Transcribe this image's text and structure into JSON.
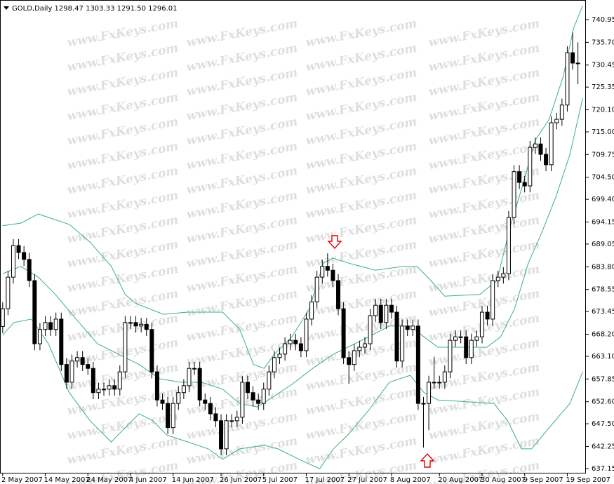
{
  "chart_data": {
    "type": "candlestick",
    "title": "GOLD,Daily  1298.47 1303.33 1291.50 1296.01",
    "watermark": "www.FxKeys.com",
    "up_color": "#ffffff",
    "down_color": "#000000",
    "xlim": [
      -0.5,
      109.5
    ],
    "ylim": [
      636.0,
      744.68
    ],
    "xticks": [
      {
        "value": 0,
        "label": "2 May 2007"
      },
      {
        "value": 8,
        "label": "14 May 2007"
      },
      {
        "value": 16,
        "label": "24 May 2007"
      },
      {
        "value": 24,
        "label": "4 Jun 2007"
      },
      {
        "value": 32,
        "label": "14 Jun 2007"
      },
      {
        "value": 41,
        "label": "26 Jun 2007"
      },
      {
        "value": 49,
        "label": "5 Jul 2007"
      },
      {
        "value": 57,
        "label": "17 Jul 2007"
      },
      {
        "value": 65,
        "label": "27 Jul 2007"
      },
      {
        "value": 73,
        "label": "8 Aug 2007"
      },
      {
        "value": 82,
        "label": "20 Aug 2007"
      },
      {
        "value": 90,
        "label": "30 Aug 2007"
      },
      {
        "value": 98,
        "label": "9 Sep 2007"
      },
      {
        "value": 106,
        "label": "19 Sep 2007"
      }
    ],
    "yticks": [
      740.95,
      {
        "value": 735.7,
        "label": "735.70"
      },
      730.45,
      725.35,
      {
        "value": 720.1,
        "label": "720.10"
      },
      {
        "value": 715,
        "label": "715.00"
      },
      709.75,
      {
        "value": 704.5,
        "label": "704.50"
      },
      {
        "value": 699.4,
        "label": "699.40"
      },
      694.15,
      689.05,
      {
        "value": 683.8,
        "label": "683.80"
      },
      678.55,
      673.45,
      {
        "value": 668.2,
        "label": "668.20"
      },
      {
        "value": 663.1,
        "label": "663.10"
      },
      657.85,
      {
        "value": 652.6,
        "label": "652.60"
      },
      {
        "value": 647.5,
        "label": "647.50"
      },
      642.25,
      637.15
    ],
    "open": [
      670.0,
      674.1,
      681.4,
      688.7,
      687.1,
      685.5,
      680.6,
      666.0,
      669.3,
      670.9,
      669.3,
      671.7,
      661.2,
      657.1,
      662.0,
      662.8,
      661.2,
      660.3,
      654.7,
      655.5,
      655.5,
      656.3,
      655.5,
      659.5,
      670.9,
      670.9,
      670.1,
      670.5,
      669.3,
      659.5,
      653.0,
      652.2,
      646.6,
      652.2,
      654.7,
      656.3,
      660.3,
      660.3,
      653.0,
      652.2,
      649.8,
      648.2,
      641.7,
      648.2,
      648.2,
      649.0,
      657.1,
      654.7,
      653.0,
      652.2,
      655.5,
      659.5,
      662.8,
      663.6,
      666.0,
      666.8,
      666.0,
      664.4,
      671.7,
      675.7,
      681.4,
      683.9,
      683.0,
      680.6,
      674.1,
      662.8,
      661.2,
      664.4,
      665.2,
      666.0,
      672.5,
      674.9,
      670.9,
      674.9,
      673.3,
      662.0,
      670.1,
      669.3,
      670.1,
      652.2,
      652.2,
      657.1,
      657.1,
      657.1,
      659.5,
      666.8,
      667.6,
      667.6,
      662.8,
      666.8,
      667.6,
      673.3,
      671.7,
      680.6,
      681.4,
      682.2,
      695.2,
      705.8,
      703.3,
      702.5,
      711.4,
      712.2,
      709.8,
      707.4,
      717.1,
      717.9,
      721.2,
      733.3,
      730.9
    ],
    "high": [
      675.6,
      682.9,
      690.2,
      690.2,
      688.6,
      687.0,
      682.1,
      670.8,
      672.4,
      672.4,
      673.2,
      673.2,
      662.7,
      663.5,
      664.3,
      664.3,
      662.7,
      661.8,
      657.0,
      657.0,
      657.8,
      657.8,
      661.0,
      672.4,
      672.4,
      672.4,
      672.0,
      672.0,
      670.8,
      661.0,
      654.5,
      653.7,
      653.7,
      656.2,
      657.8,
      661.8,
      661.8,
      661.8,
      654.5,
      653.7,
      651.3,
      649.7,
      649.7,
      649.7,
      650.5,
      658.6,
      658.6,
      656.2,
      654.5,
      657.0,
      661.0,
      664.3,
      665.1,
      667.5,
      668.3,
      668.3,
      667.5,
      673.2,
      677.2,
      682.9,
      685.4,
      686.9,
      684.5,
      682.1,
      675.6,
      664.3,
      665.9,
      666.7,
      667.5,
      674.0,
      676.4,
      676.4,
      676.4,
      676.4,
      674.8,
      671.6,
      671.6,
      671.6,
      671.6,
      653.7,
      658.6,
      663.0,
      658.6,
      661.0,
      668.3,
      669.1,
      669.1,
      669.1,
      668.3,
      669.1,
      674.8,
      674.8,
      682.1,
      682.9,
      683.7,
      696.7,
      707.3,
      707.3,
      704.8,
      712.9,
      713.7,
      713.7,
      711.3,
      718.6,
      719.4,
      722.7,
      734.8,
      738.0,
      735.7
    ],
    "low": [
      668.5,
      672.6,
      679.9,
      685.6,
      684.0,
      679.1,
      664.5,
      664.5,
      667.8,
      667.8,
      667.8,
      659.7,
      655.6,
      655.6,
      660.5,
      659.7,
      658.8,
      653.2,
      653.2,
      654.0,
      654.0,
      654.0,
      654.0,
      658.0,
      669.4,
      668.6,
      668.6,
      667.8,
      658.0,
      651.5,
      650.7,
      645.1,
      645.1,
      650.7,
      653.2,
      654.8,
      658.8,
      651.5,
      650.7,
      648.3,
      646.7,
      640.2,
      640.2,
      646.7,
      646.7,
      647.5,
      653.2,
      651.5,
      650.7,
      650.7,
      654.0,
      658.0,
      661.3,
      662.1,
      664.5,
      664.5,
      662.9,
      662.9,
      670.2,
      674.2,
      679.9,
      681.5,
      679.1,
      672.6,
      661.3,
      656.7,
      659.7,
      662.9,
      663.7,
      664.5,
      671.0,
      669.4,
      669.4,
      671.8,
      660.5,
      660.5,
      667.8,
      667.8,
      650.7,
      642.0,
      646.0,
      655.6,
      655.6,
      655.6,
      658.0,
      665.3,
      666.1,
      661.3,
      661.3,
      665.3,
      666.1,
      670.2,
      670.2,
      679.1,
      679.9,
      680.7,
      693.7,
      701.8,
      701.0,
      701.0,
      709.9,
      708.3,
      705.9,
      705.9,
      715.6,
      716.4,
      719.7,
      729.4,
      726.0
    ],
    "close": [
      674.1,
      681.4,
      688.7,
      687.1,
      685.5,
      680.6,
      666.0,
      669.3,
      670.9,
      669.3,
      671.7,
      661.2,
      657.1,
      662.0,
      662.8,
      661.2,
      660.3,
      654.7,
      655.5,
      655.5,
      656.3,
      655.5,
      659.5,
      670.9,
      670.9,
      670.1,
      670.5,
      669.3,
      659.5,
      653.0,
      652.2,
      646.6,
      652.2,
      654.7,
      656.3,
      660.3,
      660.3,
      653.0,
      652.2,
      649.8,
      648.2,
      641.7,
      648.2,
      648.2,
      649.0,
      657.1,
      654.7,
      653.0,
      652.2,
      655.5,
      659.5,
      662.8,
      663.6,
      666.0,
      666.8,
      666.0,
      664.4,
      671.7,
      675.7,
      681.4,
      683.9,
      683.0,
      680.6,
      674.1,
      662.8,
      661.2,
      664.4,
      665.2,
      666.0,
      672.5,
      674.9,
      670.9,
      674.9,
      673.3,
      662.0,
      670.1,
      669.3,
      670.1,
      652.2,
      652.2,
      657.1,
      657.1,
      657.1,
      659.5,
      666.8,
      667.6,
      667.6,
      662.8,
      666.8,
      667.6,
      673.3,
      671.7,
      680.6,
      681.4,
      682.2,
      695.2,
      705.8,
      703.3,
      702.5,
      711.4,
      712.2,
      709.8,
      707.4,
      717.1,
      717.9,
      721.2,
      733.3,
      730.9,
      730.9
    ],
    "lines": [
      {
        "color": "#3cb371",
        "x": [
          0,
          3.4,
          6.7,
          8.6,
          12.5,
          16.4,
          20.4,
          23.0,
          24.9,
          26.9,
          30.2,
          34.7,
          41.3,
          44.5,
          47.1,
          49.1,
          51.0,
          54.3,
          57.6,
          60.2,
          62.1,
          64.8,
          70.0,
          75.2,
          77.8,
          80.4,
          83.0,
          89.6,
          92.8,
          95.4,
          97.4,
          100.0,
          102.6,
          105.2,
          107.2,
          108.9
        ],
        "values": [
          693.3,
          693.9,
          696.0,
          695.2,
          693.6,
          689.5,
          683.9,
          677.4,
          675.4,
          674.4,
          672.8,
          673.3,
          673.3,
          669.3,
          661.2,
          660.3,
          663.6,
          667.6,
          674.1,
          684.7,
          685.8,
          684.7,
          683.0,
          683.9,
          683.9,
          680.6,
          677.0,
          677.4,
          680.6,
          693.6,
          701.7,
          713.1,
          717.9,
          727.7,
          739.0,
          744.2
        ]
      },
      {
        "color": "#3cb371",
        "x": [
          0,
          3.4,
          6.7,
          9.9,
          13.8,
          17.8,
          21.7,
          25.6,
          29.5,
          33.4,
          37.3,
          41.3,
          44.5,
          47.8,
          50.4,
          54.3,
          58.2,
          62.1,
          64.8,
          68.7,
          72.6,
          76.5,
          79.1,
          81.7,
          85.6,
          90.9,
          93.5,
          96.1,
          98.7,
          101.3,
          103.9,
          106.5,
          108.9
        ],
        "values": [
          682.2,
          683.9,
          681.4,
          677.4,
          671.7,
          666.0,
          663.6,
          661.2,
          657.9,
          657.1,
          657.1,
          655.5,
          652.2,
          651.4,
          653.4,
          656.6,
          660.3,
          663.6,
          665.2,
          667.6,
          670.1,
          670.1,
          667.6,
          665.2,
          665.2,
          665.2,
          667.6,
          674.1,
          684.7,
          692.0,
          700.1,
          709.8,
          722.8
        ]
      },
      {
        "color": "#3cb371",
        "x": [
          0,
          2.1,
          5.4,
          8.6,
          12.5,
          16.4,
          20.4,
          23.0,
          25.6,
          28.2,
          30.8,
          34.7,
          38.6,
          41.3,
          44.5,
          49.1,
          51.7,
          55.6,
          59.5,
          62.1,
          64.8,
          68.7,
          72.6,
          76.5,
          79.1,
          81.7,
          85.6,
          92.2,
          94.8,
          97.4,
          99.3,
          102.6,
          106.5,
          108.9
        ],
        "values": [
          668.0,
          670.9,
          671.7,
          666.0,
          654.7,
          648.2,
          643.3,
          646.6,
          649.8,
          648.2,
          644.9,
          643.3,
          641.7,
          639.3,
          641.7,
          642.5,
          641.7,
          639.3,
          637.1,
          641.7,
          644.9,
          650.6,
          657.1,
          658.7,
          654.7,
          653.0,
          652.7,
          652.2,
          648.2,
          641.7,
          641.7,
          646.6,
          652.2,
          659.5
        ]
      }
    ]
  }
}
